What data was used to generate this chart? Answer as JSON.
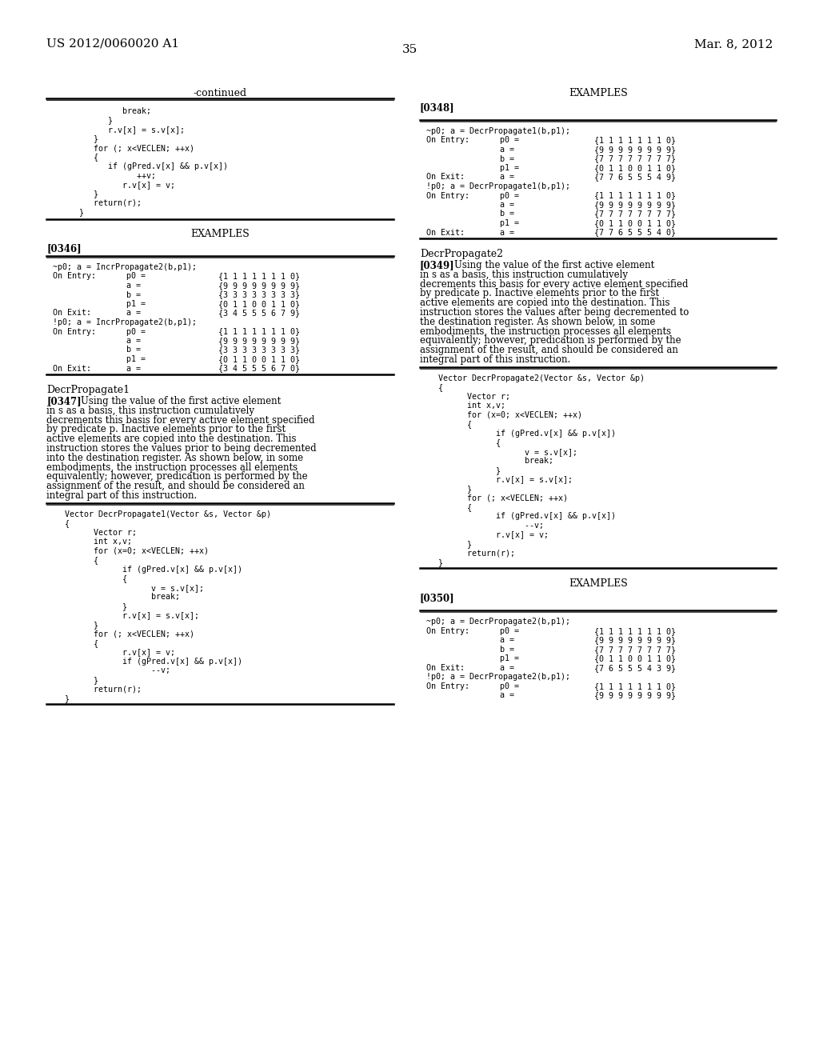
{
  "bg_color": "#ffffff",
  "header_left": "US 2012/0060020 A1",
  "header_right": "Mar. 8, 2012",
  "page_number": "35",
  "left_col": {
    "continued_title": "-continued",
    "continued_code": [
      "               break;",
      "            }",
      "            r.v[x] = s.v[x];",
      "         }",
      "         for (; x<VECLEN; ++x)",
      "         {",
      "            if (gPred.v[x] && p.v[x])",
      "                  ++v;",
      "               r.v[x] = v;",
      "         }",
      "         return(r);",
      "      }"
    ],
    "examples_title": "EXAMPLES",
    "para_id1": "[0346]",
    "table1_header": "~p0; a = IncrPropagate2(b,p1);",
    "table1_rows": [
      [
        "On Entry:",
        "p0 =",
        "{1 1 1 1 1 1 1 0}"
      ],
      [
        "",
        "a =",
        "{9 9 9 9 9 9 9 9}"
      ],
      [
        "",
        "b =",
        "{3 3 3 3 3 3 3 3}"
      ],
      [
        "",
        "p1 =",
        "{0 1 1 0 0 1 1 0}"
      ],
      [
        "On Exit:",
        "a =",
        "{3 4 5 5 5 6 7 9}"
      ],
      [
        "!p0; a = IncrPropagate2(b,p1);",
        "",
        ""
      ],
      [
        "On Entry:",
        "p0 =",
        "{1 1 1 1 1 1 1 0}"
      ],
      [
        "",
        "a =",
        "{9 9 9 9 9 9 9 9}"
      ],
      [
        "",
        "b =",
        "{3 3 3 3 3 3 3 3}"
      ],
      [
        "",
        "p1 =",
        "{0 1 1 0 0 1 1 0}"
      ],
      [
        "On Exit:",
        "a =",
        "{3 4 5 5 5 6 7 0}"
      ]
    ],
    "section_title": "DecrPropagate1",
    "para_id2": "[0347]",
    "para_text": "Using the value of the first active element in s as a basis, this instruction cumulatively decrements this basis for every active element specified by predicate p. Inactive elements prior to the first active elements are copied into the destination. This instruction stores the values prior to being decremented into the destination register. As shown below, in some embodiments, the instruction processes all elements equivalently; however, predication is performed by the assignment of the result, and should be considered an integral part of this instruction.",
    "code_box": [
      "   Vector DecrPropagate1(Vector &s, Vector &p)",
      "   {",
      "         Vector r;",
      "         int x,v;",
      "         for (x=0; x<VECLEN; ++x)",
      "         {",
      "               if (gPred.v[x] && p.v[x])",
      "               {",
      "                     v = s.v[x];",
      "                     break;",
      "               }",
      "               r.v[x] = s.v[x];",
      "         }",
      "         for (; x<VECLEN; ++x)",
      "         {",
      "               r.v[x] = v;",
      "               if (gPred.v[x] && p.v[x])",
      "                     --v;",
      "         }",
      "         return(r);",
      "   }"
    ]
  },
  "right_col": {
    "examples_title": "EXAMPLES",
    "para_id1": "[0348]",
    "table1_header": "~p0; a = DecrPropagate1(b,p1);",
    "table1_rows": [
      [
        "On Entry:",
        "p0 =",
        "{1 1 1 1 1 1 1 0}"
      ],
      [
        "",
        "a =",
        "{9 9 9 9 9 9 9 9}"
      ],
      [
        "",
        "b =",
        "{7 7 7 7 7 7 7 7}"
      ],
      [
        "",
        "p1 =",
        "{0 1 1 0 0 1 1 0}"
      ],
      [
        "On Exit:",
        "a =",
        "{7 7 6 5 5 5 4 9}"
      ],
      [
        "!p0; a = DecrPropagate1(b,p1);",
        "",
        ""
      ],
      [
        "On Entry:",
        "p0 =",
        "{1 1 1 1 1 1 1 0}"
      ],
      [
        "",
        "a =",
        "{9 9 9 9 9 9 9 9}"
      ],
      [
        "",
        "b =",
        "{7 7 7 7 7 7 7 7}"
      ],
      [
        "",
        "p1 =",
        "{0 1 1 0 0 1 1 0}"
      ],
      [
        "On Exit:",
        "a =",
        "{7 7 6 5 5 5 4 0}"
      ]
    ],
    "section_title": "DecrPropagate2",
    "para_id2": "[0349]",
    "para_text": "Using the value of the first active element in s as a basis, this instruction cumulatively decrements this basis for every active element specified by predicate p. Inactive elements prior to the first active elements are copied into the destination. This instruction stores the values after being decremented to the destination register. As shown below, in some embodiments, the instruction processes all elements equivalently; however, predication is performed by the assignment of the result, and should be considered an integral part of this instruction.",
    "code_box": [
      "   Vector DecrPropagate2(Vector &s, Vector &p)",
      "   {",
      "         Vector r;",
      "         int x,v;",
      "         for (x=0; x<VECLEN; ++x)",
      "         {",
      "               if (gPred.v[x] && p.v[x])",
      "               {",
      "                     v = s.v[x];",
      "                     break;",
      "               }",
      "               r.v[x] = s.v[x];",
      "         }",
      "         for (; x<VECLEN; ++x)",
      "         {",
      "               if (gPred.v[x] && p.v[x])",
      "                     --v;",
      "               r.v[x] = v;",
      "         }",
      "         return(r);",
      "   }"
    ],
    "examples_title2": "EXAMPLES",
    "para_id3": "[0350]",
    "table2_header": "~p0; a = DecrPropagate2(b,p1);",
    "table2_rows": [
      [
        "On Entry:",
        "p0 =",
        "{1 1 1 1 1 1 1 0}"
      ],
      [
        "",
        "a =",
        "{9 9 9 9 9 9 9 9}"
      ],
      [
        "",
        "b =",
        "{7 7 7 7 7 7 7 7}"
      ],
      [
        "",
        "p1 =",
        "{0 1 1 0 0 1 1 0}"
      ],
      [
        "On Exit:",
        "a =",
        "{7 6 5 5 5 4 3 9}"
      ],
      [
        "!p0; a = DecrPropagate2(b,p1);",
        "",
        ""
      ],
      [
        "On Entry:",
        "p0 =",
        "{1 1 1 1 1 1 1 0}"
      ],
      [
        "",
        "a =",
        "{9 9 9 9 9 9 9 9}"
      ]
    ]
  }
}
